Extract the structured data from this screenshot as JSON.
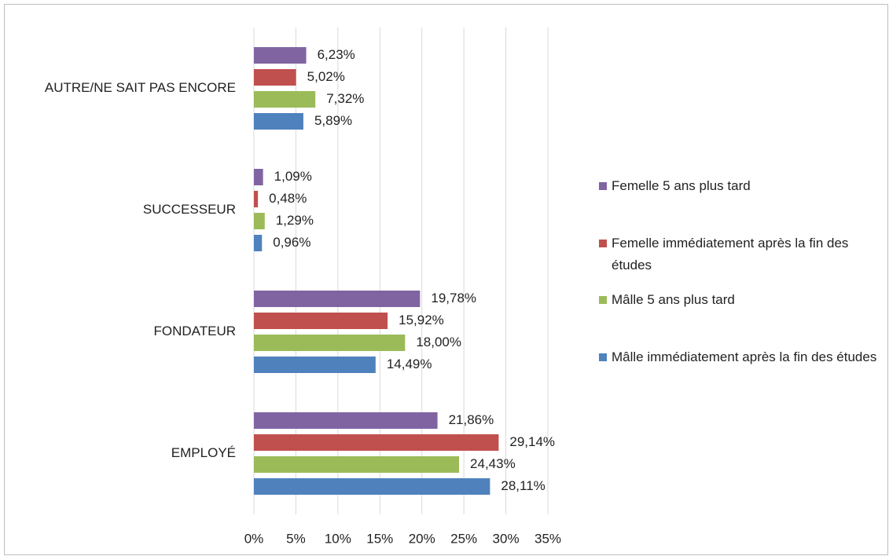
{
  "chart_data": {
    "type": "hbar",
    "categories": [
      "AUTRE/NE SAIT PAS ENCORE",
      "SUCCESSEUR",
      "FONDATEUR",
      "EMPLOYÉ"
    ],
    "series": [
      {
        "name": "Femelle 5 ans plus tard",
        "color": "#8064a2",
        "values": [
          6.23,
          1.09,
          19.78,
          21.86
        ],
        "value_labels": [
          "6,23%",
          "1,09%",
          "19,78%",
          "21,86%"
        ]
      },
      {
        "name": "Femelle immédiatement après la fin des études",
        "color": "#c0504d",
        "values": [
          5.02,
          0.48,
          15.92,
          29.14
        ],
        "value_labels": [
          "5,02%",
          "0,48%",
          "15,92%",
          "29,14%"
        ]
      },
      {
        "name": "Mâlle 5 ans plus tard",
        "color": "#9bbb59",
        "values": [
          7.32,
          1.29,
          18.0,
          24.43
        ],
        "value_labels": [
          "7,32%",
          "1,29%",
          "18,00%",
          "24,43%"
        ]
      },
      {
        "name": "Mâlle immédiatement après la fin des études",
        "color": "#4f81bd",
        "values": [
          5.89,
          0.96,
          14.49,
          28.11
        ],
        "value_labels": [
          "5,89%",
          "0,96%",
          "14,49%",
          "28,11%"
        ]
      }
    ],
    "xlim": [
      0,
      35
    ],
    "xticks": [
      {
        "value": 0,
        "label": "0%"
      },
      {
        "value": 5,
        "label": "5%"
      },
      {
        "value": 10,
        "label": "10%"
      },
      {
        "value": 15,
        "label": "15%"
      },
      {
        "value": 20,
        "label": "20%"
      },
      {
        "value": 25,
        "label": "25%"
      },
      {
        "value": 30,
        "label": "30%"
      },
      {
        "value": 35,
        "label": "35%"
      }
    ],
    "grid": true
  }
}
